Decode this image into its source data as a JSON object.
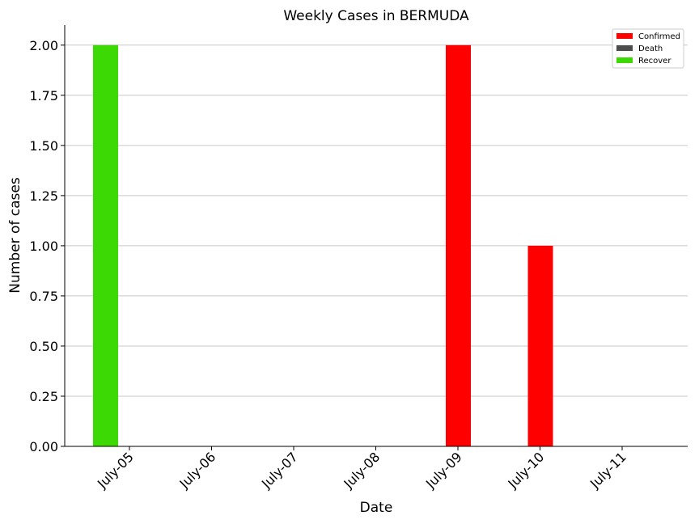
{
  "chart_data": {
    "type": "bar",
    "title": "Weekly Cases in BERMUDA",
    "xlabel": "Date",
    "ylabel": "Number of cases",
    "categories": [
      "July-05",
      "July-06",
      "July-07",
      "July-08",
      "July-09",
      "July-10",
      "July-11"
    ],
    "series": [
      {
        "name": "Confirmed",
        "color": "#ff0000",
        "values": [
          0,
          0,
          0,
          0,
          2,
          1,
          0
        ]
      },
      {
        "name": "Death",
        "color": "#4d4d4d",
        "values": [
          0,
          0,
          0,
          0,
          0,
          0,
          0
        ]
      },
      {
        "name": "Recover",
        "color": "#3dd904",
        "values": [
          2,
          0,
          0,
          0,
          0,
          0,
          0
        ]
      }
    ],
    "ylim": [
      0,
      2.1
    ],
    "yticks": [
      "0.00",
      "0.25",
      "0.50",
      "0.75",
      "1.00",
      "1.25",
      "1.50",
      "1.75",
      "2.00"
    ],
    "grid": "horizontal",
    "legend_position": "top-right"
  }
}
